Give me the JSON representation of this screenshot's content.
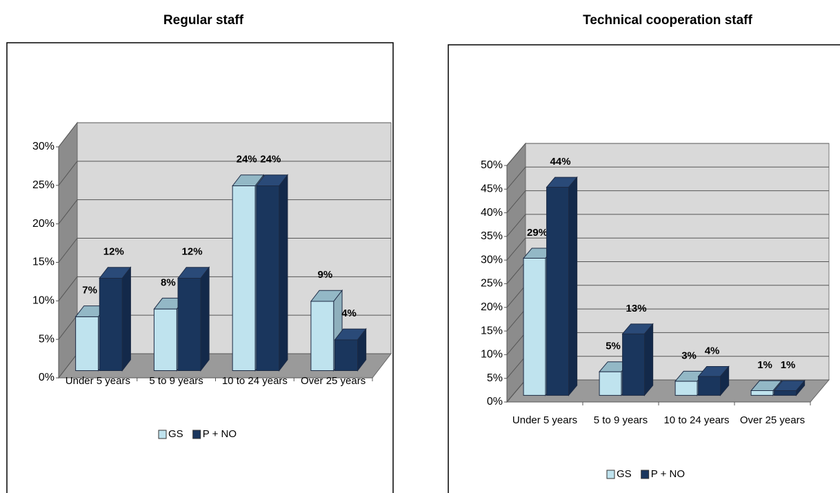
{
  "chart_data": [
    {
      "type": "bar3d",
      "title": "Regular staff",
      "categories": [
        "Under 5 years",
        "5 to 9 years",
        "10 to 24 years",
        "Over 25 years"
      ],
      "series": [
        {
          "name": "GS",
          "color": "#bfe3ee",
          "values": [
            7,
            8,
            24,
            9
          ],
          "value_labels": [
            "7%",
            "8%",
            "24%",
            "9%"
          ]
        },
        {
          "name": "P + NO",
          "color": "#1a365d",
          "values": [
            12,
            12,
            24,
            4
          ],
          "value_labels": [
            "12%",
            "12%",
            "24%",
            "4%"
          ]
        }
      ],
      "ylim": [
        0,
        30
      ],
      "yticks": [
        {
          "value": 0,
          "label": "0%"
        },
        {
          "value": 5,
          "label": "5%"
        },
        {
          "value": 10,
          "label": "10%"
        },
        {
          "value": 15,
          "label": "15%"
        },
        {
          "value": 20,
          "label": "20%"
        },
        {
          "value": 25,
          "label": "25%"
        },
        {
          "value": 30,
          "label": "30%"
        }
      ],
      "grid": true,
      "legend": "bottom"
    },
    {
      "type": "bar3d",
      "title": "Technical cooperation staff",
      "categories": [
        "Under 5 years",
        "5 to 9 years",
        "10 to 24 years",
        "Over 25 years"
      ],
      "series": [
        {
          "name": "GS",
          "color": "#bfe3ee",
          "values": [
            29,
            5,
            3,
            1
          ],
          "value_labels": [
            "29%",
            "5%",
            "3%",
            "1%"
          ]
        },
        {
          "name": "P + NO",
          "color": "#1a365d",
          "values": [
            44,
            13,
            4,
            1
          ],
          "value_labels": [
            "44%",
            "13%",
            "4%",
            "1%"
          ]
        }
      ],
      "ylim": [
        0,
        50
      ],
      "yticks": [
        {
          "value": 0,
          "label": "0%"
        },
        {
          "value": 5,
          "label": "5%"
        },
        {
          "value": 10,
          "label": "10%"
        },
        {
          "value": 15,
          "label": "15%"
        },
        {
          "value": 20,
          "label": "20%"
        },
        {
          "value": 25,
          "label": "25%"
        },
        {
          "value": 30,
          "label": "30%"
        },
        {
          "value": 35,
          "label": "35%"
        },
        {
          "value": 40,
          "label": "40%"
        },
        {
          "value": 45,
          "label": "45%"
        },
        {
          "value": 50,
          "label": "50%"
        }
      ],
      "grid": true,
      "legend": "bottom"
    }
  ]
}
